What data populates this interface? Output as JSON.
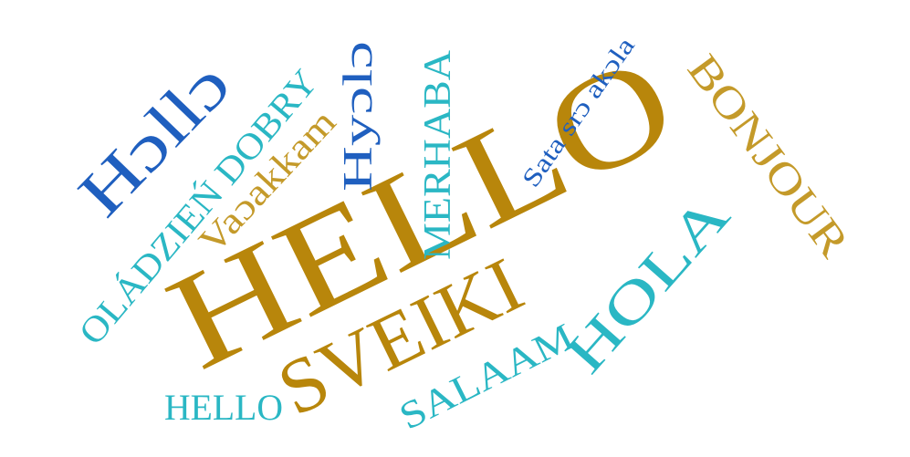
{
  "words": [
    {
      "text": "HELLO",
      "color": "#b8860b"
    },
    {
      "text": "Hɔllɔ",
      "color": "#1f5fbf"
    },
    {
      "text": "OLÁDZIEŃ DOBRY",
      "color": "#2ab7c4"
    },
    {
      "text": "Vaɔakkam",
      "color": "#c49a2a"
    },
    {
      "text": "Hyɔlɔ",
      "color": "#1f5fbf"
    },
    {
      "text": "MERHABA",
      "color": "#2ab7c4"
    },
    {
      "text": "Sata srɔ akɔla",
      "color": "#1f5fbf"
    },
    {
      "text": "BONJOUR",
      "color": "#c49a2a"
    },
    {
      "text": "HOLA",
      "color": "#2ab7c4"
    },
    {
      "text": "SVEIKI",
      "color": "#b8860b"
    },
    {
      "text": "SALAAM",
      "color": "#2ab7c4"
    },
    {
      "text": "HELLO",
      "color": "#2ab7c4"
    }
  ]
}
